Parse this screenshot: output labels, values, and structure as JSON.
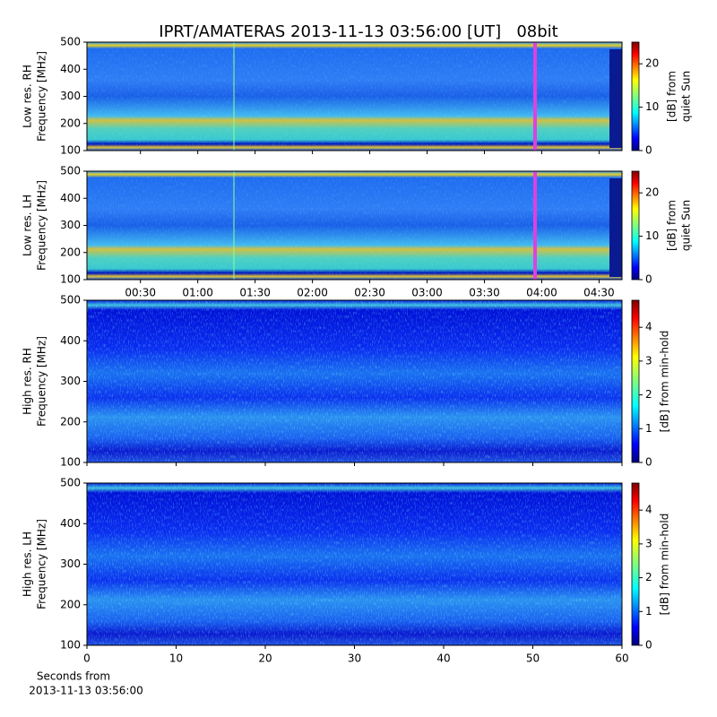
{
  "chart_data": [
    {
      "type": "heatmap",
      "title": "IPRT/AMATERAS 2013-11-13 03:56:00 [UT]   08bit",
      "ylabel": [
        "Low res. RH",
        "Frequency [MHz]"
      ],
      "ylim": [
        100,
        500
      ],
      "yticks": [
        100,
        200,
        300,
        400,
        500
      ],
      "xlim": [
        2,
        282
      ],
      "colorbar": {
        "label": [
          "[dB] from",
          "quiet Sun"
        ],
        "lim": [
          0,
          25
        ],
        "ticks": [
          0,
          10,
          20
        ]
      }
    },
    {
      "type": "heatmap",
      "ylabel": [
        "Low res. LH",
        "Frequency [MHz]"
      ],
      "ylim": [
        100,
        500
      ],
      "yticks": [
        100,
        200,
        300,
        400,
        500
      ],
      "xlim": [
        2,
        282
      ],
      "xticks": [
        {
          "value": 30,
          "label": "00:30"
        },
        {
          "value": 60,
          "label": "01:00"
        },
        {
          "value": 90,
          "label": "01:30"
        },
        {
          "value": 120,
          "label": "02:00"
        },
        {
          "value": 150,
          "label": "02:30"
        },
        {
          "value": 180,
          "label": "03:00"
        },
        {
          "value": 210,
          "label": "03:30"
        },
        {
          "value": 240,
          "label": "04:00"
        },
        {
          "value": 270,
          "label": "04:30"
        }
      ],
      "colorbar": {
        "label": [
          "[dB] from",
          "quiet Sun"
        ],
        "lim": [
          0,
          25
        ],
        "ticks": [
          0,
          10,
          20
        ]
      }
    },
    {
      "type": "heatmap",
      "ylabel": [
        "High res. RH",
        "Frequency [MHz]"
      ],
      "ylim": [
        100,
        500
      ],
      "yticks": [
        100,
        200,
        300,
        400,
        500
      ],
      "xlim": [
        0,
        60
      ],
      "colorbar": {
        "label": [
          "[dB] from min-hold"
        ],
        "lim": [
          0,
          4.8
        ],
        "ticks": [
          0,
          1,
          2,
          3,
          4
        ]
      }
    },
    {
      "type": "heatmap",
      "ylabel": [
        "High res. LH",
        "Frequency [MHz]"
      ],
      "ylim": [
        100,
        500
      ],
      "yticks": [
        100,
        200,
        300,
        400,
        500
      ],
      "xlim": [
        0,
        60
      ],
      "xticks": [
        0,
        10,
        20,
        30,
        40,
        50,
        60
      ],
      "xlabel": [
        "Seconds from",
        "2013-11-13 03:56:00"
      ],
      "colorbar": {
        "label": [
          "[dB] from min-hold"
        ],
        "lim": [
          0,
          4.8
        ],
        "ticks": [
          0,
          1,
          2,
          3,
          4
        ]
      }
    }
  ]
}
